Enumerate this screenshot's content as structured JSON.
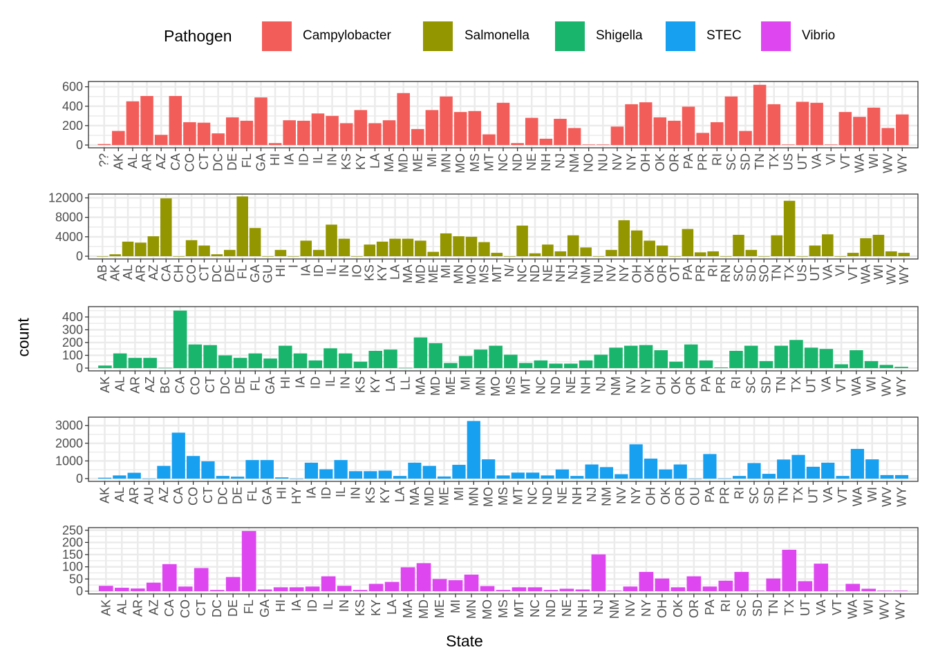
{
  "chart_data": {
    "type": "bar",
    "layout": "facet-stack",
    "xlabel": "State",
    "ylabel": "count",
    "legend": {
      "title": "Pathogen",
      "position": "top",
      "entries": [
        {
          "name": "Campylobacter",
          "color": "#F8766D"
        },
        {
          "name": "Salmonella",
          "color": "#A3A500"
        },
        {
          "name": "Shigella",
          "color": "#00BF7D"
        },
        {
          "name": "STEC",
          "color": "#00B0F6"
        },
        {
          "name": "Vibrio",
          "color": "#E76BF3"
        }
      ]
    },
    "grid": true,
    "panels": [
      {
        "name": "Campylobacter",
        "color": "#F35D59",
        "ylim": [
          0,
          640
        ],
        "yticks": [
          0,
          200,
          400,
          600
        ],
        "categories": [
          "??",
          "AK",
          "AL",
          "AR",
          "AZ",
          "CA",
          "CO",
          "CT",
          "DC",
          "DE",
          "FL",
          "GA",
          "HI",
          "IA",
          "ID",
          "IL",
          "IN",
          "KS",
          "KY",
          "LA",
          "MA",
          "MD",
          "ME",
          "MI",
          "MN",
          "MO",
          "MS",
          "MT",
          "NC",
          "ND",
          "NE",
          "NH",
          "NJ",
          "NM",
          "NO",
          "NU",
          "NV",
          "NY",
          "OH",
          "OK",
          "OR",
          "PA",
          "PR",
          "RI",
          "SC",
          "SD",
          "TN",
          "TX",
          "US",
          "UT",
          "VA",
          "VI",
          "VT",
          "WA",
          "WI",
          "WV",
          "WY"
        ],
        "values": [
          10,
          145,
          450,
          505,
          105,
          505,
          235,
          230,
          120,
          285,
          250,
          490,
          20,
          255,
          250,
          325,
          300,
          225,
          360,
          225,
          255,
          535,
          165,
          360,
          500,
          340,
          350,
          110,
          435,
          20,
          280,
          65,
          270,
          175,
          5,
          5,
          190,
          420,
          440,
          285,
          250,
          395,
          125,
          235,
          500,
          145,
          620,
          420,
          5,
          445,
          435,
          5,
          340,
          290,
          385,
          175,
          315
        ]
      },
      {
        "name": "Salmonella",
        "color": "#949600",
        "ylim": [
          0,
          12500
        ],
        "yticks": [
          0,
          4000,
          8000,
          12000
        ],
        "categories": [
          "AB",
          "AK",
          "AL",
          "AR",
          "AZ",
          "CA",
          "CH",
          "CO",
          "CT",
          "DC",
          "DE",
          "FL",
          "GA",
          "GU",
          "HI",
          "I",
          "IA",
          "ID",
          "IL",
          "IN",
          "IO",
          "KS",
          "KY",
          "LA",
          "MA",
          "MD",
          "ME",
          "MI",
          "MN",
          "MO",
          "MS",
          "MT",
          "N/",
          "NC",
          "ND",
          "NE",
          "NH",
          "NJ",
          "NM",
          "NU",
          "NV",
          "NY",
          "OH",
          "OK",
          "OR",
          "OT",
          "PA",
          "PR",
          "RI",
          "RN",
          "SC",
          "SD",
          "SO",
          "TN",
          "TX",
          "US",
          "UT",
          "VA",
          "VI",
          "VT",
          "WA",
          "WI",
          "WV",
          "WY"
        ],
        "values": [
          0,
          400,
          3000,
          2800,
          4100,
          11900,
          0,
          3300,
          2200,
          400,
          1300,
          12300,
          5800,
          0,
          1300,
          0,
          3200,
          1300,
          6500,
          3600,
          0,
          2400,
          3000,
          3600,
          3600,
          3200,
          900,
          4700,
          4100,
          4000,
          2900,
          700,
          0,
          6300,
          600,
          2400,
          1000,
          4300,
          1800,
          0,
          1300,
          7400,
          5300,
          3200,
          2200,
          0,
          5600,
          800,
          1000,
          0,
          4400,
          1300,
          0,
          4300,
          11400,
          0,
          2200,
          4500,
          0,
          700,
          3700,
          4400,
          1000,
          700
        ]
      },
      {
        "name": "Shigella",
        "color": "#1AB56C",
        "ylim": [
          0,
          470
        ],
        "yticks": [
          0,
          100,
          200,
          300,
          400
        ],
        "categories": [
          "AK",
          "AL",
          "AR",
          "AZ",
          "BC",
          "CA",
          "CO",
          "CT",
          "DC",
          "DE",
          "FL",
          "GA",
          "HI",
          "IA",
          "ID",
          "IL",
          "IN",
          "KS",
          "KY",
          "LA",
          "LL",
          "MA",
          "MD",
          "ME",
          "MI",
          "MN",
          "MO",
          "MS",
          "MT",
          "NC",
          "ND",
          "NE",
          "NH",
          "NJ",
          "NM",
          "NV",
          "NY",
          "OH",
          "OK",
          "OR",
          "PA",
          "PR",
          "RI",
          "SC",
          "SD",
          "TN",
          "TX",
          "UT",
          "VA",
          "VT",
          "WA",
          "WI",
          "WV",
          "WY"
        ],
        "values": [
          20,
          115,
          80,
          80,
          2,
          450,
          185,
          180,
          100,
          80,
          115,
          75,
          175,
          115,
          60,
          155,
          115,
          50,
          135,
          145,
          2,
          240,
          195,
          40,
          95,
          145,
          175,
          105,
          40,
          60,
          35,
          35,
          60,
          105,
          160,
          175,
          180,
          140,
          50,
          185,
          60,
          5,
          135,
          175,
          55,
          175,
          220,
          160,
          150,
          30,
          140,
          55,
          25,
          10
        ]
      },
      {
        "name": "STEC",
        "color": "#179FF0",
        "ylim": [
          0,
          3400
        ],
        "yticks": [
          0,
          1000,
          2000,
          3000
        ],
        "categories": [
          "AK",
          "AL",
          "AR",
          "AU",
          "AZ",
          "CA",
          "CO",
          "CT",
          "DC",
          "DE",
          "FL",
          "GA",
          "HI",
          "HY",
          "IA",
          "ID",
          "IL",
          "IN",
          "KS",
          "KY",
          "LA",
          "MA",
          "MD",
          "ME",
          "MI",
          "MN",
          "MO",
          "MS",
          "MT",
          "NC",
          "ND",
          "NE",
          "NH",
          "NJ",
          "NM",
          "NV",
          "NY",
          "OH",
          "OK",
          "OR",
          "OU",
          "PA",
          "PR",
          "RI",
          "SC",
          "SD",
          "TN",
          "TX",
          "UT",
          "VA",
          "VT",
          "WA",
          "WI",
          "WV",
          "WY"
        ],
        "values": [
          50,
          180,
          330,
          0,
          720,
          2600,
          1280,
          980,
          150,
          110,
          1050,
          1050,
          70,
          0,
          900,
          530,
          1050,
          420,
          420,
          450,
          150,
          900,
          720,
          120,
          780,
          3260,
          1090,
          180,
          340,
          340,
          180,
          520,
          150,
          800,
          650,
          250,
          1940,
          1130,
          520,
          800,
          0,
          1390,
          10,
          150,
          880,
          270,
          1080,
          1340,
          670,
          900,
          150,
          1680,
          1090,
          200,
          200
        ]
      },
      {
        "name": "Vibrio",
        "color": "#DE47F0",
        "ylim": [
          0,
          255
        ],
        "yticks": [
          0,
          50,
          100,
          150,
          200,
          250
        ],
        "categories": [
          "AK",
          "AL",
          "AR",
          "AZ",
          "CA",
          "CO",
          "CT",
          "DC",
          "DE",
          "FL",
          "GA",
          "HI",
          "IA",
          "ID",
          "IL",
          "IN",
          "KS",
          "KY",
          "LA",
          "MA",
          "MD",
          "ME",
          "MI",
          "MN",
          "MO",
          "MS",
          "MT",
          "NC",
          "ND",
          "NE",
          "NH",
          "NJ",
          "NM",
          "NV",
          "NY",
          "OH",
          "OK",
          "OR",
          "PA",
          "RI",
          "SC",
          "SD",
          "TN",
          "TX",
          "UT",
          "VA",
          "VT",
          "WA",
          "WI",
          "WV",
          "WY"
        ],
        "values": [
          22,
          14,
          11,
          35,
          111,
          19,
          95,
          5,
          58,
          247,
          7,
          16,
          16,
          19,
          61,
          22,
          5,
          30,
          38,
          98,
          115,
          50,
          45,
          68,
          21,
          5,
          16,
          16,
          5,
          10,
          7,
          151,
          2,
          19,
          79,
          52,
          16,
          61,
          19,
          43,
          79,
          2,
          52,
          170,
          41,
          113,
          2,
          30,
          10,
          2,
          2
        ]
      }
    ]
  }
}
